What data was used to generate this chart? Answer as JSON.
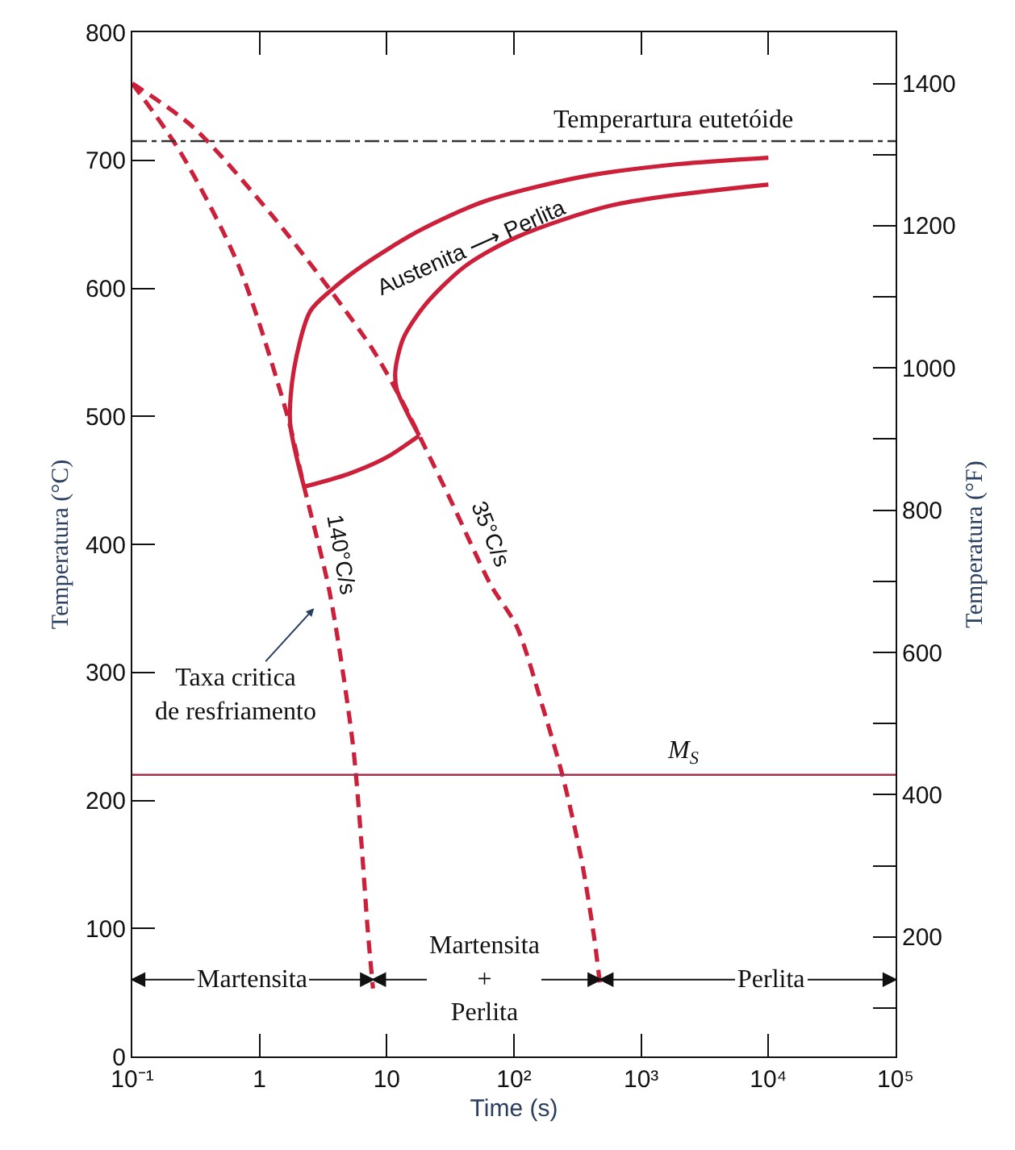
{
  "chart_data": {
    "type": "line",
    "xlabel": "Time (s)",
    "ylabel": "Temperatura (°C)",
    "y2label": "Temperatura (°F)",
    "log": "x",
    "xlim": [
      0.1,
      100000
    ],
    "ylim": [
      0,
      800
    ],
    "y2lim": [
      32,
      1472
    ],
    "xticks": [
      {
        "value": 0.1,
        "label": "10⁻¹"
      },
      1,
      10,
      {
        "value": 100,
        "label": "10²"
      },
      {
        "value": 1000,
        "label": "10³"
      },
      {
        "value": 10000,
        "label": "10⁴"
      },
      {
        "value": 100000,
        "label": "10⁵"
      }
    ],
    "yticks": [
      0,
      100,
      200,
      300,
      400,
      500,
      600,
      700,
      800
    ],
    "y2ticks": [
      {
        "value": 100,
        "label": null
      },
      200,
      {
        "value": 300,
        "label": null
      },
      400,
      {
        "value": 500,
        "label": null
      },
      600,
      {
        "value": 700,
        "label": null
      },
      800,
      {
        "value": 900,
        "label": null
      },
      1000,
      {
        "value": 1100,
        "label": null
      },
      1200,
      {
        "value": 1300,
        "label": null
      },
      1400
    ],
    "grid": false,
    "marker": "none",
    "series": [
      {
        "color": "#cc1f3a",
        "line_style": "dashed",
        "x": [
          0.1,
          0.24,
          0.69,
          1.66,
          2.24,
          3.55,
          5.4,
          6.3,
          7.1,
          7.8
        ],
        "values": [
          760,
          706,
          617,
          500,
          445,
          363,
          245,
          169,
          98,
          53
        ]
      },
      {
        "color": "#cc1f3a",
        "line_style": "dashed",
        "x": [
          0.1,
          0.3,
          1.23,
          3.7,
          7.9,
          13.5,
          18,
          32,
          66,
          105,
          166,
          240,
          339,
          427,
          479
        ],
        "values": [
          760,
          726,
          658,
          597,
          551,
          510,
          485,
          434,
          368,
          336,
          275,
          220,
          154,
          93,
          53
        ]
      },
      {
        "color": "#cc1f3a",
        "line_style": "solid",
        "x": [
          2.24,
          1.74,
          1.86,
          2.5,
          3.7,
          6.3,
          18,
          59,
          339,
          1950,
          10000
        ],
        "values": [
          445,
          495,
          536,
          582,
          599,
          617,
          645,
          668,
          687,
          697,
          702
        ]
      },
      {
        "color": "#cc1f3a",
        "line_style": "solid",
        "x": [
          18,
          12,
          11.7,
          13.5,
          20,
          41,
          105,
          600,
          10000
        ],
        "values": [
          485,
          521,
          536,
          561,
          587,
          617,
          640,
          665,
          681
        ]
      },
      {
        "color": "#cc1f3a",
        "line_style": "solid",
        "x": [
          2.24,
          5.0,
          10,
          18
        ],
        "values": [
          445,
          455,
          468,
          485
        ]
      }
    ],
    "ref_lines": [
      {
        "axis": "y",
        "value": 715,
        "label": "Temperartura eutetóide",
        "color": "#333333",
        "line_style": "dashdot"
      },
      {
        "axis": "y",
        "value": 220,
        "label": "M$_{S}$",
        "color": "#a0304a",
        "line_style": "solid"
      }
    ],
    "annotations": [
      "Austenita ⟶ Perlita",
      "140°C/s",
      "35°C/s",
      "Taxa critica\nde resfriamento",
      "Martensita",
      "Martensita\n+\nPerlita",
      "Perlita"
    ]
  }
}
